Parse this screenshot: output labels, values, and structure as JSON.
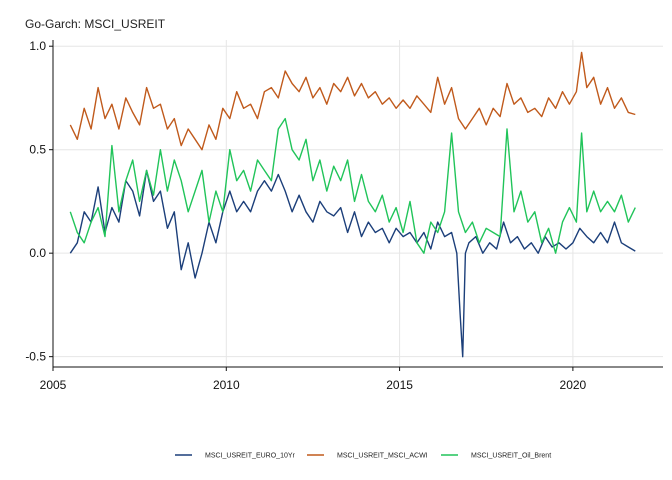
{
  "chart_data": {
    "type": "line",
    "title": "Go-Garch: MSCI_USREIT",
    "xlabel": "",
    "ylabel": "",
    "xlim": [
      2005.0,
      2022.6
    ],
    "ylim": [
      -0.55,
      1.03
    ],
    "x_ticks": [
      2005,
      2010,
      2015,
      2020
    ],
    "x_tick_labels": [
      "2005",
      "2010",
      "2015",
      "2020"
    ],
    "y_ticks": [
      -0.5,
      0.0,
      0.5,
      1.0
    ],
    "y_tick_labels": [
      "-0.5",
      "0.0",
      "0.5",
      "1.0"
    ],
    "grid": true,
    "legend_position": "bottom",
    "series": [
      {
        "name": "MSCI_USREIT_EURO_10Yr",
        "color": "#1c3f7a",
        "x": [
          2005.5,
          2005.7,
          2005.9,
          2006.1,
          2006.3,
          2006.5,
          2006.7,
          2006.9,
          2007.1,
          2007.3,
          2007.5,
          2007.7,
          2007.9,
          2008.1,
          2008.3,
          2008.5,
          2008.7,
          2008.9,
          2009.1,
          2009.3,
          2009.5,
          2009.7,
          2009.9,
          2010.1,
          2010.3,
          2010.5,
          2010.7,
          2010.9,
          2011.1,
          2011.3,
          2011.5,
          2011.7,
          2011.9,
          2012.1,
          2012.3,
          2012.5,
          2012.7,
          2012.9,
          2013.1,
          2013.3,
          2013.5,
          2013.7,
          2013.9,
          2014.1,
          2014.3,
          2014.5,
          2014.7,
          2014.9,
          2015.1,
          2015.3,
          2015.5,
          2015.7,
          2015.9,
          2016.1,
          2016.3,
          2016.5,
          2016.65,
          2016.75,
          2016.82,
          2016.9,
          2017.0,
          2017.2,
          2017.4,
          2017.6,
          2017.8,
          2018.0,
          2018.2,
          2018.4,
          2018.6,
          2018.8,
          2019.0,
          2019.2,
          2019.4,
          2019.6,
          2019.8,
          2020.0,
          2020.2,
          2020.4,
          2020.6,
          2020.8,
          2021.0,
          2021.2,
          2021.4,
          2021.6,
          2021.8
        ],
        "y": [
          0.0,
          0.05,
          0.2,
          0.15,
          0.32,
          0.1,
          0.22,
          0.15,
          0.35,
          0.3,
          0.18,
          0.4,
          0.25,
          0.3,
          0.12,
          0.2,
          -0.08,
          0.05,
          -0.12,
          0.0,
          0.15,
          0.05,
          0.2,
          0.3,
          0.2,
          0.25,
          0.2,
          0.3,
          0.35,
          0.3,
          0.38,
          0.3,
          0.2,
          0.28,
          0.2,
          0.15,
          0.25,
          0.2,
          0.18,
          0.22,
          0.1,
          0.2,
          0.08,
          0.15,
          0.1,
          0.12,
          0.05,
          0.12,
          0.08,
          0.1,
          0.05,
          0.1,
          0.02,
          0.15,
          0.08,
          0.1,
          0.0,
          -0.3,
          -0.5,
          0.0,
          0.05,
          0.08,
          0.0,
          0.05,
          0.02,
          0.15,
          0.05,
          0.08,
          0.02,
          0.05,
          0.0,
          0.08,
          0.03,
          0.05,
          0.02,
          0.05,
          0.12,
          0.08,
          0.05,
          0.1,
          0.05,
          0.15,
          0.05,
          0.03,
          0.01
        ]
      },
      {
        "name": "MSCI_USREIT_MSCI_ACWI",
        "color": "#c05a1c",
        "x": [
          2005.5,
          2005.7,
          2005.9,
          2006.1,
          2006.3,
          2006.5,
          2006.7,
          2006.9,
          2007.1,
          2007.3,
          2007.5,
          2007.7,
          2007.9,
          2008.1,
          2008.3,
          2008.5,
          2008.7,
          2008.9,
          2009.1,
          2009.3,
          2009.5,
          2009.7,
          2009.9,
          2010.1,
          2010.3,
          2010.5,
          2010.7,
          2010.9,
          2011.1,
          2011.3,
          2011.5,
          2011.7,
          2011.9,
          2012.1,
          2012.3,
          2012.5,
          2012.7,
          2012.9,
          2013.1,
          2013.3,
          2013.5,
          2013.7,
          2013.9,
          2014.1,
          2014.3,
          2014.5,
          2014.7,
          2014.9,
          2015.1,
          2015.3,
          2015.5,
          2015.7,
          2015.9,
          2016.1,
          2016.3,
          2016.5,
          2016.7,
          2016.9,
          2017.1,
          2017.3,
          2017.5,
          2017.7,
          2017.9,
          2018.1,
          2018.3,
          2018.5,
          2018.7,
          2018.9,
          2019.1,
          2019.3,
          2019.5,
          2019.7,
          2019.9,
          2020.1,
          2020.25,
          2020.4,
          2020.6,
          2020.8,
          2021.0,
          2021.2,
          2021.4,
          2021.6,
          2021.8
        ],
        "y": [
          0.62,
          0.55,
          0.7,
          0.6,
          0.8,
          0.65,
          0.72,
          0.6,
          0.75,
          0.68,
          0.62,
          0.8,
          0.7,
          0.72,
          0.6,
          0.65,
          0.52,
          0.6,
          0.55,
          0.5,
          0.62,
          0.55,
          0.7,
          0.65,
          0.78,
          0.7,
          0.72,
          0.65,
          0.78,
          0.8,
          0.75,
          0.88,
          0.82,
          0.78,
          0.85,
          0.75,
          0.8,
          0.72,
          0.82,
          0.78,
          0.85,
          0.76,
          0.82,
          0.75,
          0.78,
          0.72,
          0.75,
          0.7,
          0.74,
          0.7,
          0.76,
          0.72,
          0.68,
          0.85,
          0.72,
          0.8,
          0.65,
          0.6,
          0.65,
          0.7,
          0.62,
          0.7,
          0.66,
          0.82,
          0.72,
          0.75,
          0.68,
          0.7,
          0.66,
          0.75,
          0.7,
          0.78,
          0.72,
          0.78,
          0.97,
          0.8,
          0.85,
          0.72,
          0.8,
          0.7,
          0.75,
          0.68,
          0.67
        ]
      },
      {
        "name": "MSCI_USREIT_Oil_Brent",
        "color": "#21c45a",
        "x": [
          2005.5,
          2005.7,
          2005.9,
          2006.1,
          2006.3,
          2006.5,
          2006.7,
          2006.9,
          2007.1,
          2007.3,
          2007.5,
          2007.7,
          2007.9,
          2008.1,
          2008.3,
          2008.5,
          2008.7,
          2008.9,
          2009.1,
          2009.3,
          2009.5,
          2009.7,
          2009.9,
          2010.1,
          2010.3,
          2010.5,
          2010.7,
          2010.9,
          2011.1,
          2011.3,
          2011.5,
          2011.7,
          2011.9,
          2012.1,
          2012.3,
          2012.5,
          2012.7,
          2012.9,
          2013.1,
          2013.3,
          2013.5,
          2013.7,
          2013.9,
          2014.1,
          2014.3,
          2014.5,
          2014.7,
          2014.9,
          2015.1,
          2015.3,
          2015.5,
          2015.7,
          2015.9,
          2016.1,
          2016.3,
          2016.5,
          2016.7,
          2016.9,
          2017.1,
          2017.3,
          2017.5,
          2017.7,
          2017.9,
          2018.1,
          2018.3,
          2018.5,
          2018.7,
          2018.9,
          2019.1,
          2019.3,
          2019.5,
          2019.7,
          2019.9,
          2020.1,
          2020.25,
          2020.4,
          2020.6,
          2020.8,
          2021.0,
          2021.2,
          2021.4,
          2021.6,
          2021.8
        ],
        "y": [
          0.2,
          0.1,
          0.05,
          0.15,
          0.22,
          0.08,
          0.52,
          0.2,
          0.35,
          0.45,
          0.25,
          0.4,
          0.28,
          0.5,
          0.3,
          0.45,
          0.35,
          0.2,
          0.3,
          0.4,
          0.15,
          0.3,
          0.2,
          0.5,
          0.35,
          0.4,
          0.3,
          0.45,
          0.4,
          0.35,
          0.6,
          0.65,
          0.5,
          0.45,
          0.55,
          0.35,
          0.45,
          0.3,
          0.42,
          0.35,
          0.45,
          0.25,
          0.38,
          0.25,
          0.2,
          0.28,
          0.15,
          0.22,
          0.1,
          0.25,
          0.05,
          0.0,
          0.15,
          0.1,
          0.2,
          0.58,
          0.2,
          0.1,
          0.15,
          0.05,
          0.12,
          0.1,
          0.08,
          0.6,
          0.2,
          0.3,
          0.15,
          0.2,
          0.05,
          0.12,
          0.0,
          0.15,
          0.22,
          0.15,
          0.58,
          0.2,
          0.3,
          0.2,
          0.25,
          0.2,
          0.28,
          0.15,
          0.22
        ]
      }
    ]
  }
}
